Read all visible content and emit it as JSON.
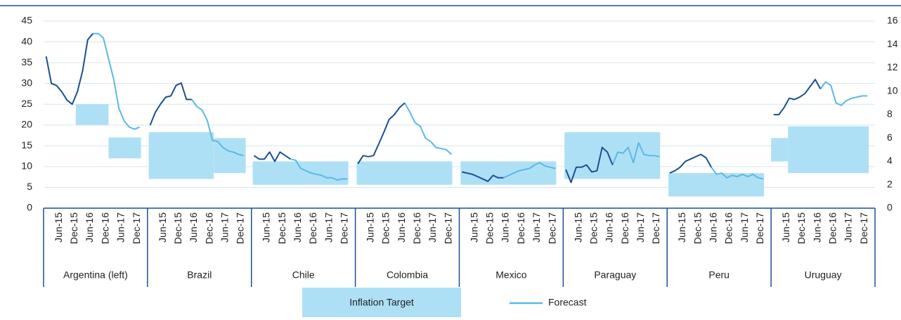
{
  "chart_data": {
    "type": "line",
    "ylim": [
      0,
      45
    ],
    "yticks": [
      0,
      5,
      10,
      15,
      20,
      25,
      30,
      35,
      40,
      45
    ],
    "y2lim": [
      0,
      16
    ],
    "y2ticks": [
      0,
      2,
      4,
      6,
      8,
      10,
      12,
      14,
      16
    ],
    "xlim": [
      0,
      40
    ],
    "xticks": [
      {
        "value": 6,
        "label": "Jun-15"
      },
      {
        "value": 12,
        "label": "Dec-15"
      },
      {
        "value": 18,
        "label": "Jun-16"
      },
      {
        "value": 24,
        "label": "Dec-16"
      },
      {
        "value": 30,
        "label": "Jun-17"
      },
      {
        "value": 36,
        "label": "Dec-17"
      }
    ],
    "grid": true,
    "actual_color": "#1b4f93",
    "forecast_color": "#5bb8e6",
    "target_color": "#aee0f5",
    "target_label": "Inflation Target",
    "forecast_label": "Forecast",
    "x": [
      1,
      3,
      5,
      7,
      9,
      11,
      13,
      15,
      17,
      19,
      21,
      23,
      25,
      27,
      29,
      31,
      33,
      35,
      37
    ],
    "groups": [
      {
        "name": "Argentina (left)",
        "axis": "y",
        "actual": [
          36.5,
          30,
          29.5,
          28,
          26,
          25,
          28,
          33,
          40.5,
          42,
          null,
          null,
          null,
          null,
          null,
          null,
          null,
          null,
          null
        ],
        "forecast": [
          null,
          null,
          null,
          null,
          null,
          null,
          null,
          null,
          null,
          42,
          42,
          41,
          36,
          31,
          24,
          21,
          19.5,
          19,
          19.5
        ],
        "targets": [
          {
            "x": [
              12.4,
              25
            ],
            "range": [
              20,
              25
            ]
          },
          {
            "x": [
              25,
              37.5
            ],
            "range": [
              12,
              17
            ]
          }
        ]
      },
      {
        "name": "Brazil",
        "axis": "y2",
        "actual": [
          7.1,
          8.2,
          8.9,
          9.5,
          9.6,
          10.5,
          10.7,
          9.3,
          9.3,
          null,
          null,
          null,
          null,
          null,
          null,
          null,
          null,
          null,
          null
        ],
        "forecast": [
          null,
          null,
          null,
          null,
          null,
          null,
          null,
          null,
          9.3,
          8.7,
          8.4,
          7.5,
          5.8,
          5.7,
          5.2,
          4.9,
          4.8,
          4.6,
          4.5
        ],
        "targets": [
          {
            "x": [
              0.5,
              25.5
            ],
            "range": [
              2.5,
              6.5
            ]
          },
          {
            "x": [
              25.5,
              37.8
            ],
            "range": [
              3,
              6
            ]
          }
        ]
      },
      {
        "name": "Chile",
        "axis": "y2",
        "actual": [
          4.5,
          4.2,
          4.2,
          4.8,
          4.0,
          4.8,
          4.5,
          4.2,
          null,
          null,
          null,
          null,
          null,
          null,
          null,
          null,
          null,
          null,
          null
        ],
        "forecast": [
          null,
          null,
          null,
          null,
          null,
          null,
          null,
          4.2,
          4.1,
          3.4,
          3.2,
          3.0,
          2.9,
          2.8,
          2.6,
          2.6,
          2.4,
          2.5,
          2.5
        ],
        "targets": [
          {
            "x": [
              0.5,
              37.3
            ],
            "range": [
              2,
              4
            ]
          }
        ]
      },
      {
        "name": "Colombia",
        "axis": "y2",
        "actual": [
          3.8,
          4.5,
          4.4,
          4.5,
          5.5,
          6.5,
          7.6,
          8.0,
          8.6,
          9.0,
          null,
          null,
          null,
          null,
          null,
          null,
          null,
          null,
          null
        ],
        "forecast": [
          null,
          null,
          null,
          null,
          null,
          null,
          null,
          null,
          null,
          9.0,
          8.2,
          7.3,
          7.0,
          6.0,
          5.7,
          5.2,
          5.1,
          5.0,
          4.6
        ],
        "targets": [
          {
            "x": [
              0.5,
              37.3
            ],
            "range": [
              2,
              4
            ]
          }
        ]
      },
      {
        "name": "Mexico",
        "axis": "y2",
        "actual": [
          3.1,
          3.0,
          2.9,
          2.7,
          2.5,
          2.3,
          2.8,
          2.6,
          2.6,
          null,
          null,
          null,
          null,
          null,
          null,
          null,
          null,
          null,
          null
        ],
        "forecast": [
          null,
          null,
          null,
          null,
          null,
          null,
          null,
          null,
          2.6,
          2.8,
          3.0,
          3.2,
          3.3,
          3.4,
          3.7,
          3.9,
          3.6,
          3.5,
          3.4
        ],
        "targets": [
          {
            "x": [
              0.5,
              37.3
            ],
            "range": [
              2,
              4
            ]
          }
        ]
      },
      {
        "name": "Paraguay",
        "axis": "y2",
        "actual": [
          3.3,
          2.2,
          3.5,
          3.5,
          3.7,
          3.1,
          3.2,
          5.2,
          4.8,
          3.7,
          null,
          null,
          null,
          null,
          null,
          null,
          null,
          null,
          null
        ],
        "forecast": [
          null,
          null,
          null,
          null,
          null,
          null,
          null,
          null,
          null,
          3.7,
          4.8,
          4.7,
          5.2,
          3.9,
          5.6,
          4.6,
          4.5,
          4.5,
          4.4
        ],
        "targets": [
          {
            "x": [
              0.5,
              37.3
            ],
            "range": [
              2.5,
              6.5
            ]
          }
        ]
      },
      {
        "name": "Peru",
        "axis": "y2",
        "actual": [
          3.0,
          3.2,
          3.5,
          4.0,
          4.2,
          4.4,
          4.6,
          4.3,
          3.5,
          null,
          null,
          null,
          null,
          null,
          null,
          null,
          null,
          null,
          null
        ],
        "forecast": [
          null,
          null,
          null,
          null,
          null,
          null,
          null,
          null,
          3.5,
          2.9,
          3.0,
          2.6,
          2.8,
          2.7,
          2.9,
          2.7,
          2.9,
          2.6,
          2.5
        ],
        "targets": [
          {
            "x": [
              0.5,
              37.3
            ],
            "range": [
              1,
              3
            ]
          }
        ]
      },
      {
        "name": "Uruguay",
        "axis": "y2",
        "actual": [
          8.0,
          8.0,
          8.6,
          9.4,
          9.3,
          9.5,
          9.8,
          10.4,
          11.0,
          10.2,
          null,
          null,
          null,
          null,
          null,
          null,
          null,
          null,
          null
        ],
        "forecast": [
          null,
          null,
          null,
          null,
          null,
          null,
          null,
          null,
          null,
          10.2,
          10.8,
          10.5,
          9.0,
          8.8,
          9.2,
          9.4,
          9.5,
          9.6,
          9.6
        ],
        "targets": [
          {
            "x": [
              0,
              6.5
            ],
            "range": [
              4,
              6
            ]
          },
          {
            "x": [
              6.5,
              37.6
            ],
            "range": [
              3,
              7
            ]
          }
        ]
      }
    ]
  }
}
